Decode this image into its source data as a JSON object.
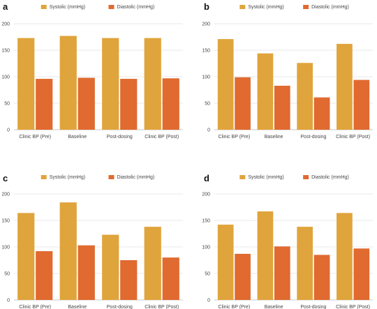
{
  "chart_data": [
    {
      "type": "bar",
      "panel_label": "a",
      "categories": [
        "Clinic BP (Pre)",
        "Baseline",
        "Post-dosing",
        "Clinic BP (Post)"
      ],
      "series": [
        {
          "name": "Systolic (mmHg)",
          "values": [
            173,
            177,
            173,
            173
          ]
        },
        {
          "name": "Diastolic (mmHg)",
          "values": [
            96,
            98,
            96,
            97
          ]
        }
      ],
      "yticks": [
        0,
        50,
        100,
        150,
        200
      ],
      "ylim": [
        0,
        200
      ],
      "grid": true,
      "legend": "top-center",
      "colors": [
        "#e0a43c",
        "#e06a30"
      ]
    },
    {
      "type": "bar",
      "panel_label": "b",
      "categories": [
        "Clinic BP (Pre)",
        "Baseline",
        "Post-dosing",
        "Clinic BP (Post)"
      ],
      "series": [
        {
          "name": "Systolic (mmHg)",
          "values": [
            171,
            144,
            126,
            162
          ]
        },
        {
          "name": "Diastolic (mmHg)",
          "values": [
            99,
            83,
            61,
            94
          ]
        }
      ],
      "yticks": [
        0,
        50,
        100,
        150,
        200
      ],
      "ylim": [
        0,
        200
      ],
      "grid": true,
      "legend": "top-center",
      "colors": [
        "#e0a43c",
        "#e06a30"
      ]
    },
    {
      "type": "bar",
      "panel_label": "c",
      "categories": [
        "Clinic BP (Pre)",
        "Baseline",
        "Post-dosing",
        "Clinic BP (Post)"
      ],
      "series": [
        {
          "name": "Systolic (mmHg)",
          "values": [
            164,
            184,
            123,
            138
          ]
        },
        {
          "name": "Diastolic (mmHg)",
          "values": [
            92,
            103,
            75,
            80
          ]
        }
      ],
      "yticks": [
        0,
        50,
        100,
        150,
        200
      ],
      "ylim": [
        0,
        200
      ],
      "grid": true,
      "legend": "top-center",
      "colors": [
        "#e0a43c",
        "#e06a30"
      ]
    },
    {
      "type": "bar",
      "panel_label": "d",
      "categories": [
        "Clinic BP (Pre)",
        "Baseline",
        "Post-dosing",
        "Clinic BP (Post)"
      ],
      "series": [
        {
          "name": "Systolic (mmHg)",
          "values": [
            142,
            167,
            138,
            164
          ]
        },
        {
          "name": "Diastolic (mmHg)",
          "values": [
            87,
            101,
            85,
            97
          ]
        }
      ],
      "yticks": [
        0,
        50,
        100,
        150,
        200
      ],
      "ylim": [
        0,
        200
      ],
      "grid": true,
      "legend": "top-center",
      "colors": [
        "#e0a43c",
        "#e06a30"
      ]
    }
  ]
}
